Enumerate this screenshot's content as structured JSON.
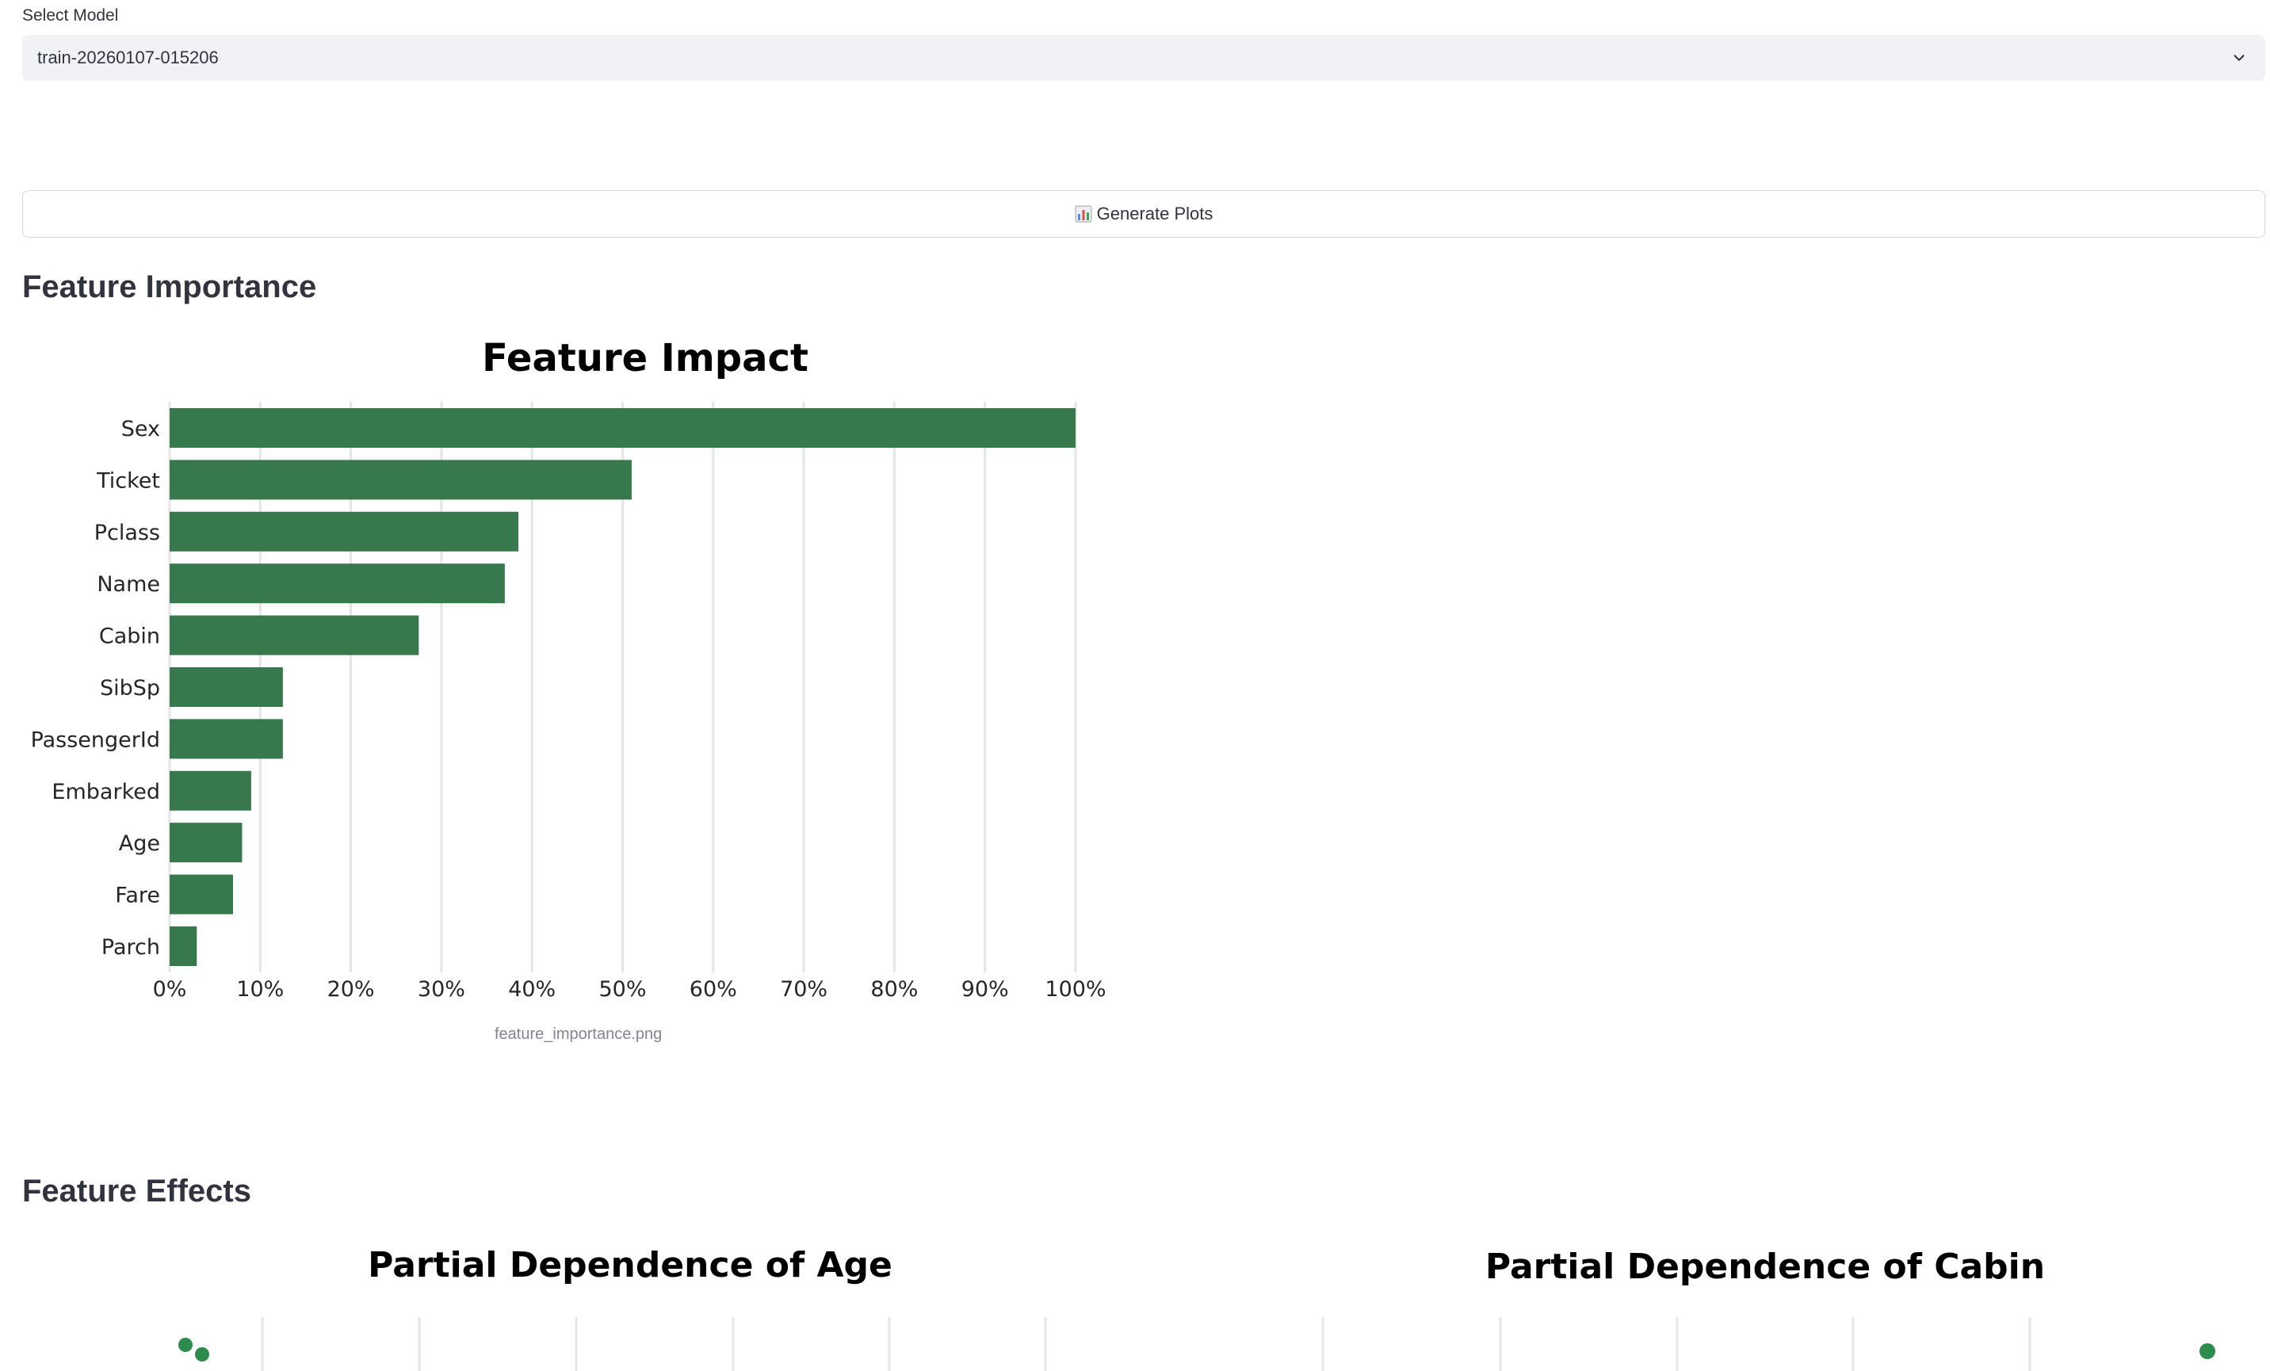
{
  "model_select": {
    "label": "Select Model",
    "value": "train-20260107-015206"
  },
  "generate_button": {
    "label": "Generate Plots"
  },
  "sections": {
    "feature_importance": "Feature Importance",
    "feature_effects": "Feature Effects"
  },
  "image_caption": "feature_importance.png",
  "colors": {
    "bar": "#37784d",
    "point": "#2e8b4e",
    "grid": "#e5e5e5"
  },
  "icons": {
    "generate": "bar-chart-icon",
    "select": "chevron-down-icon"
  },
  "chart_data": [
    {
      "type": "bar",
      "orientation": "horizontal",
      "title": "Feature Impact",
      "categories": [
        "Sex",
        "Ticket",
        "Pclass",
        "Name",
        "Cabin",
        "SibSp",
        "PassengerId",
        "Embarked",
        "Age",
        "Fare",
        "Parch"
      ],
      "values": [
        100,
        51,
        38.5,
        37,
        27.5,
        12.5,
        12.5,
        9,
        8,
        7,
        3
      ],
      "xticks": [
        "0%",
        "10%",
        "20%",
        "30%",
        "40%",
        "50%",
        "60%",
        "70%",
        "80%",
        "90%",
        "100%"
      ],
      "xlim": [
        0,
        100
      ],
      "grid": true,
      "xlabel": "",
      "ylabel": ""
    },
    {
      "type": "line",
      "title": "Partial Dependence of Age"
    },
    {
      "type": "scatter",
      "title": "Partial Dependence of Cabin"
    }
  ]
}
